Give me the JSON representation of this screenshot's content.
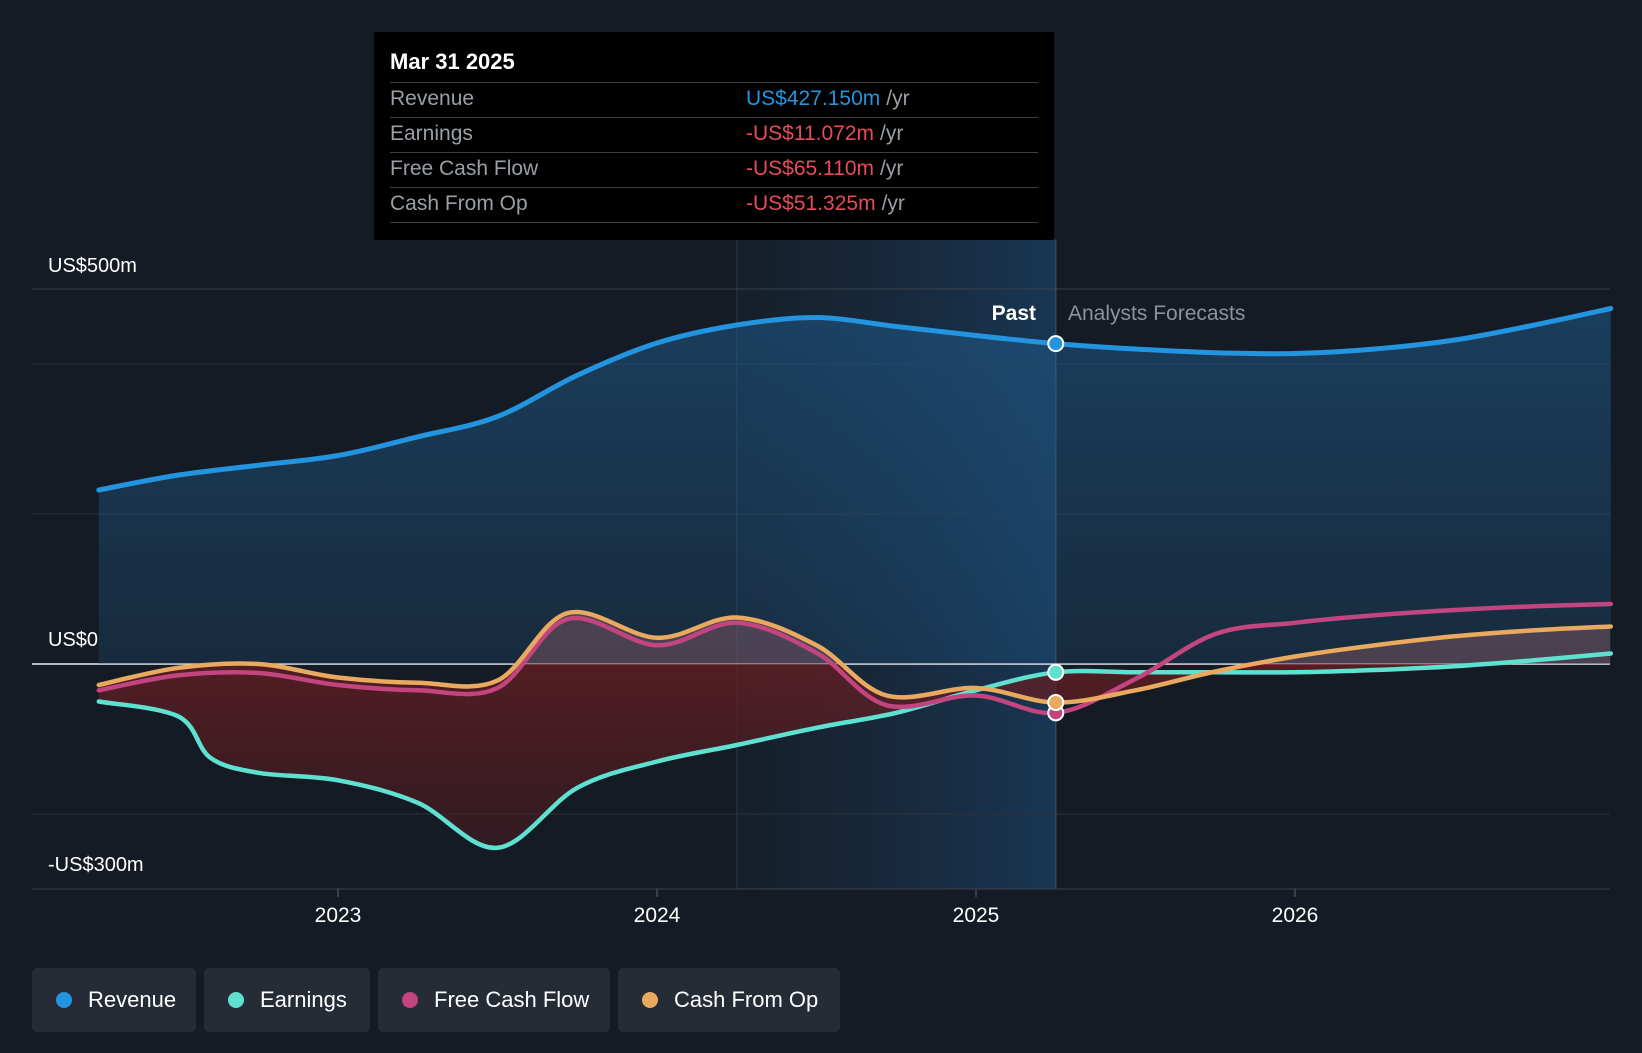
{
  "chart_data": {
    "type": "line",
    "x_ticks": [
      "2023",
      "2024",
      "2025",
      "2026"
    ],
    "y_tick_labels": {
      "top": "US$500m",
      "zero": "US$0",
      "bottom": "-US$300m"
    },
    "ylim": [
      -300,
      500
    ],
    "past_label": "Past",
    "forecast_label": "Analysts Forecasts",
    "divider_date": "Mar 31 2025",
    "series": [
      {
        "name": "Revenue",
        "color": "#2394df",
        "points": [
          [
            2022.25,
            232
          ],
          [
            2022.5,
            252
          ],
          [
            2022.75,
            265
          ],
          [
            2023.0,
            278
          ],
          [
            2023.25,
            303
          ],
          [
            2023.5,
            330
          ],
          [
            2023.75,
            385
          ],
          [
            2024.0,
            428
          ],
          [
            2024.25,
            452
          ],
          [
            2024.5,
            462
          ],
          [
            2024.75,
            450
          ],
          [
            2025.0,
            438
          ],
          [
            2025.25,
            427.15
          ],
          [
            2025.5,
            420
          ],
          [
            2025.75,
            415
          ],
          [
            2026.0,
            414
          ],
          [
            2026.25,
            420
          ],
          [
            2026.5,
            432
          ],
          [
            2026.75,
            452
          ],
          [
            2026.99,
            474
          ]
        ]
      },
      {
        "name": "Earnings",
        "color": "#5ee1d0",
        "points": [
          [
            2022.25,
            -50
          ],
          [
            2022.5,
            -70
          ],
          [
            2022.6,
            -125
          ],
          [
            2022.75,
            -145
          ],
          [
            2023.0,
            -155
          ],
          [
            2023.25,
            -185
          ],
          [
            2023.5,
            -245
          ],
          [
            2023.75,
            -165
          ],
          [
            2024.0,
            -130
          ],
          [
            2024.25,
            -108
          ],
          [
            2024.5,
            -85
          ],
          [
            2024.75,
            -65
          ],
          [
            2025.0,
            -35
          ],
          [
            2025.25,
            -11.072
          ],
          [
            2025.5,
            -11
          ],
          [
            2025.75,
            -11
          ],
          [
            2026.0,
            -11
          ],
          [
            2026.25,
            -8
          ],
          [
            2026.5,
            -3
          ],
          [
            2026.75,
            5
          ],
          [
            2026.99,
            14
          ]
        ]
      },
      {
        "name": "Free Cash Flow",
        "color": "#c2457f",
        "points": [
          [
            2022.25,
            -35
          ],
          [
            2022.5,
            -15
          ],
          [
            2022.75,
            -12
          ],
          [
            2023.0,
            -28
          ],
          [
            2023.25,
            -35
          ],
          [
            2023.5,
            -32
          ],
          [
            2023.72,
            60
          ],
          [
            2024.0,
            25
          ],
          [
            2024.25,
            55
          ],
          [
            2024.5,
            15
          ],
          [
            2024.72,
            -55
          ],
          [
            2025.0,
            -42
          ],
          [
            2025.25,
            -65.11
          ],
          [
            2025.5,
            -20
          ],
          [
            2025.75,
            40
          ],
          [
            2026.0,
            55
          ],
          [
            2026.25,
            65
          ],
          [
            2026.5,
            72
          ],
          [
            2026.75,
            77
          ],
          [
            2026.99,
            80
          ]
        ]
      },
      {
        "name": "Cash From Op",
        "color": "#e9a95f",
        "points": [
          [
            2022.25,
            -28
          ],
          [
            2022.5,
            -5
          ],
          [
            2022.75,
            0
          ],
          [
            2023.0,
            -18
          ],
          [
            2023.25,
            -25
          ],
          [
            2023.5,
            -22
          ],
          [
            2023.72,
            68
          ],
          [
            2024.0,
            35
          ],
          [
            2024.25,
            62
          ],
          [
            2024.5,
            25
          ],
          [
            2024.72,
            -42
          ],
          [
            2025.0,
            -32
          ],
          [
            2025.25,
            -51.325
          ],
          [
            2025.5,
            -35
          ],
          [
            2025.75,
            -10
          ],
          [
            2026.0,
            10
          ],
          [
            2026.25,
            25
          ],
          [
            2026.5,
            37
          ],
          [
            2026.75,
            45
          ],
          [
            2026.99,
            50
          ]
        ]
      }
    ]
  },
  "tooltip": {
    "date": "Mar 31 2025",
    "rows": [
      {
        "label": "Revenue",
        "value": "US$427.150m",
        "unit": "/yr",
        "color": "#2394df"
      },
      {
        "label": "Earnings",
        "value": "-US$11.072m",
        "unit": "/yr",
        "color": "#e64b5a"
      },
      {
        "label": "Free Cash Flow",
        "value": "-US$65.110m",
        "unit": "/yr",
        "color": "#e64b5a"
      },
      {
        "label": "Cash From Op",
        "value": "-US$51.325m",
        "unit": "/yr",
        "color": "#e64b5a"
      }
    ]
  },
  "legend": [
    {
      "label": "Revenue",
      "color": "#2394df"
    },
    {
      "label": "Earnings",
      "color": "#5ee1d0"
    },
    {
      "label": "Free Cash Flow",
      "color": "#c2457f"
    },
    {
      "label": "Cash From Op",
      "color": "#e9a95f"
    }
  ]
}
